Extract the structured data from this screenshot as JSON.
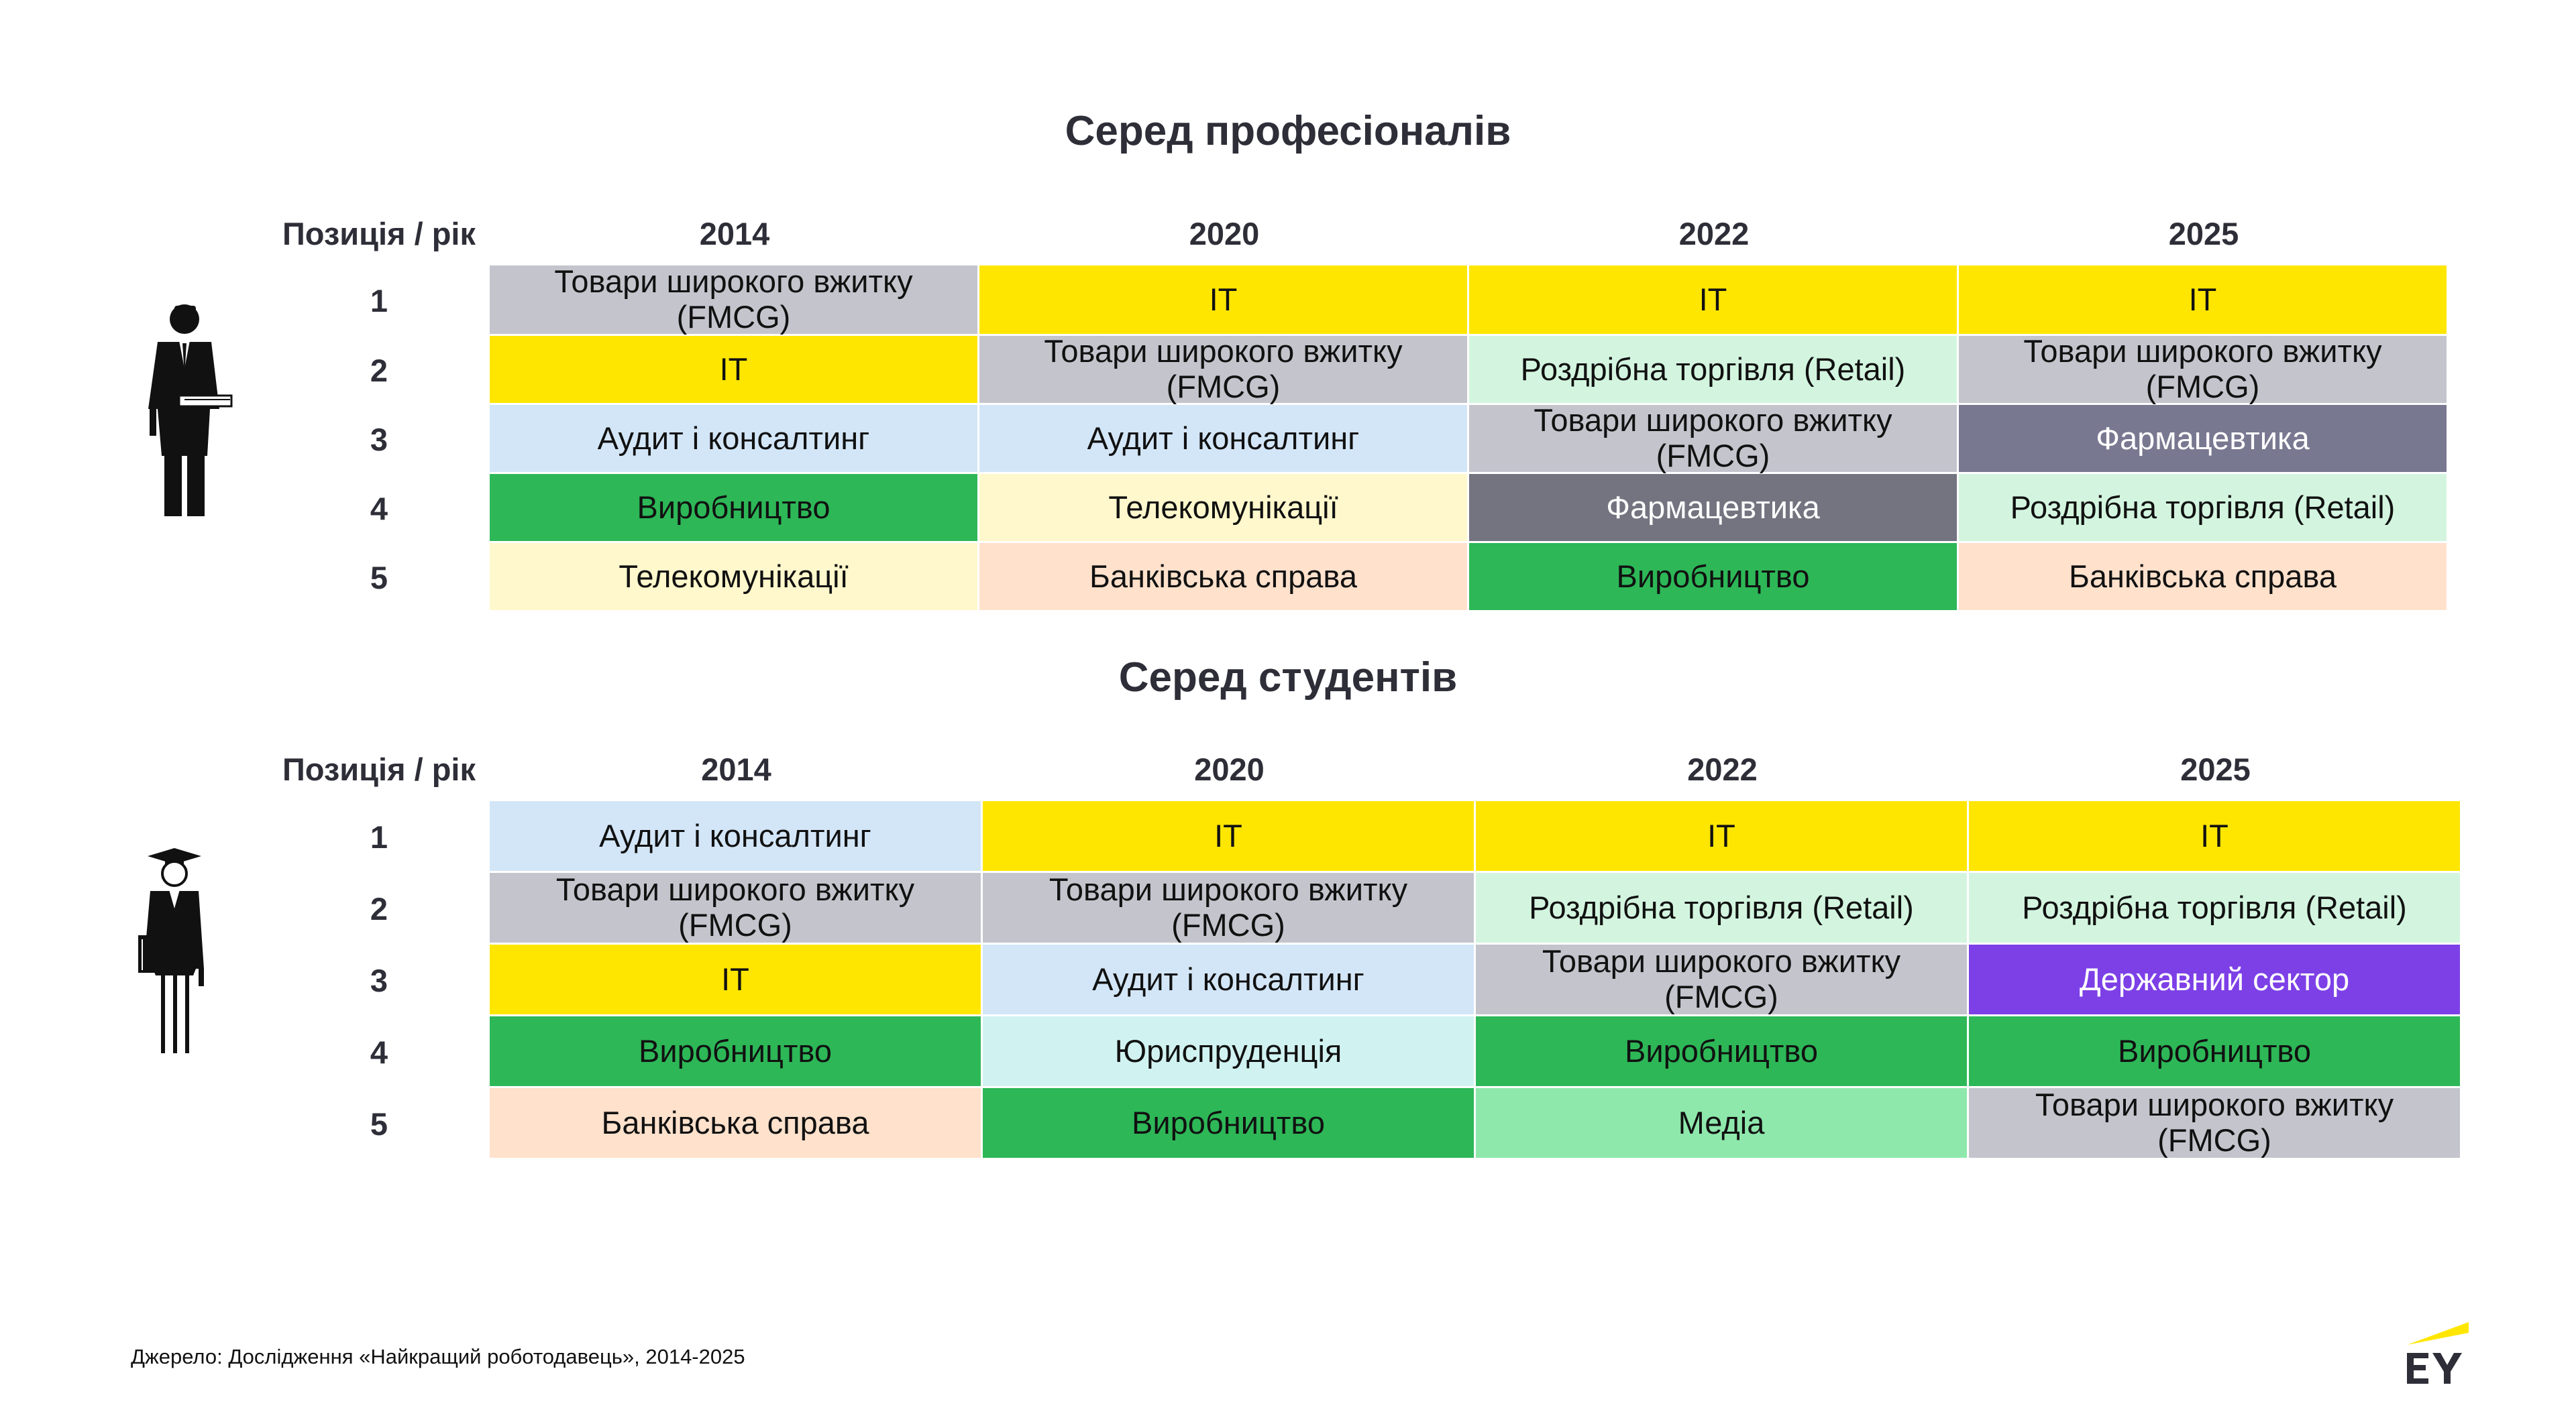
{
  "sections": [
    {
      "title": "Серед професіоналів",
      "header_label": "Позиція / рік",
      "years": [
        "2014",
        "2020",
        "2022",
        "2025"
      ],
      "rows": [
        {
          "rank": "1",
          "cells": [
            {
              "text": "Товари широкого вжитку (FMCG)",
              "color": "#c4c4cd"
            },
            {
              "text": "IT",
              "color": "#ffe600"
            },
            {
              "text": "IT",
              "color": "#ffe600"
            },
            {
              "text": "IT",
              "color": "#ffe600"
            }
          ]
        },
        {
          "rank": "2",
          "cells": [
            {
              "text": "IT",
              "color": "#ffe600"
            },
            {
              "text": "Товари широкого вжитку (FMCG)",
              "color": "#c4c4cd"
            },
            {
              "text": "Роздрібна торгівля (Retail)",
              "color": "#d3f5df"
            },
            {
              "text": "Товари широкого вжитку (FMCG)",
              "color": "#c4c4cd"
            }
          ]
        },
        {
          "rank": "3",
          "cells": [
            {
              "text": "Аудит і консалтинг",
              "color": "#d3e6f8"
            },
            {
              "text": "Аудит і консалтинг",
              "color": "#d3e6f8"
            },
            {
              "text": "Товари широкого вжитку (FMCG)",
              "color": "#c4c4cd"
            },
            {
              "text": "Фармацевтика",
              "color": "#797891"
            }
          ]
        },
        {
          "rank": "4",
          "cells": [
            {
              "text": "Виробництво",
              "color": "#2db757"
            },
            {
              "text": "Телекомунікації",
              "color": "#fff8cc"
            },
            {
              "text": "Фармацевтика",
              "color": "#747480"
            },
            {
              "text": "Роздрібна торгівля (Retail)",
              "color": "#d3f5df"
            }
          ]
        },
        {
          "rank": "5",
          "cells": [
            {
              "text": "Телекомунікації",
              "color": "#fff8cc"
            },
            {
              "text": "Банківська справа",
              "color": "#ffe1cc"
            },
            {
              "text": "Виробництво",
              "color": "#2db757"
            },
            {
              "text": "Банківська справа",
              "color": "#ffe1cc"
            }
          ]
        }
      ]
    },
    {
      "title": "Серед студентів",
      "header_label": "Позиція / рік",
      "years": [
        "2014",
        "2020",
        "2022",
        "2025"
      ],
      "rows": [
        {
          "rank": "1",
          "cells": [
            {
              "text": "Аудит і консалтинг",
              "color": "#d3e6f8"
            },
            {
              "text": "IT",
              "color": "#ffe600"
            },
            {
              "text": "IT",
              "color": "#ffe600"
            },
            {
              "text": "IT",
              "color": "#ffe600"
            }
          ]
        },
        {
          "rank": "2",
          "cells": [
            {
              "text": "Товари широкого вжитку (FMCG)",
              "color": "#c4c4cd"
            },
            {
              "text": "Товари широкого вжитку (FMCG)",
              "color": "#c4c4cd"
            },
            {
              "text": "Роздрібна торгівля (Retail)",
              "color": "#d3f5df"
            },
            {
              "text": "Роздрібна торгівля (Retail)",
              "color": "#d3f5df"
            }
          ]
        },
        {
          "rank": "3",
          "cells": [
            {
              "text": "IT",
              "color": "#ffe600"
            },
            {
              "text": "Аудит і консалтинг",
              "color": "#d3e6f8"
            },
            {
              "text": "Товари широкого вжитку (FMCG)",
              "color": "#c4c4cd"
            },
            {
              "text": "Державний сектор",
              "color": "#7d40e7"
            }
          ]
        },
        {
          "rank": "4",
          "cells": [
            {
              "text": "Виробництво",
              "color": "#2db757"
            },
            {
              "text": "Юриспруденція",
              "color": "#d0f3f1"
            },
            {
              "text": "Виробництво",
              "color": "#2db757"
            },
            {
              "text": "Виробництво",
              "color": "#2db757"
            }
          ]
        },
        {
          "rank": "5",
          "cells": [
            {
              "text": "Банківська справа",
              "color": "#ffe1cc"
            },
            {
              "text": "Виробництво",
              "color": "#2db757"
            },
            {
              "text": "Медіа",
              "color": "#8ee8ac"
            },
            {
              "text": "Товари широкого вжитку (FMCG)",
              "color": "#c4c4cd"
            }
          ]
        }
      ]
    }
  ],
  "source": "Джерело: Дослідження «Найкращий роботодавець», 2014-2025",
  "logo": {
    "text": "EY",
    "accent_color": "#ffe600"
  },
  "icons": [
    "businessman-icon",
    "graduate-student-icon"
  ]
}
